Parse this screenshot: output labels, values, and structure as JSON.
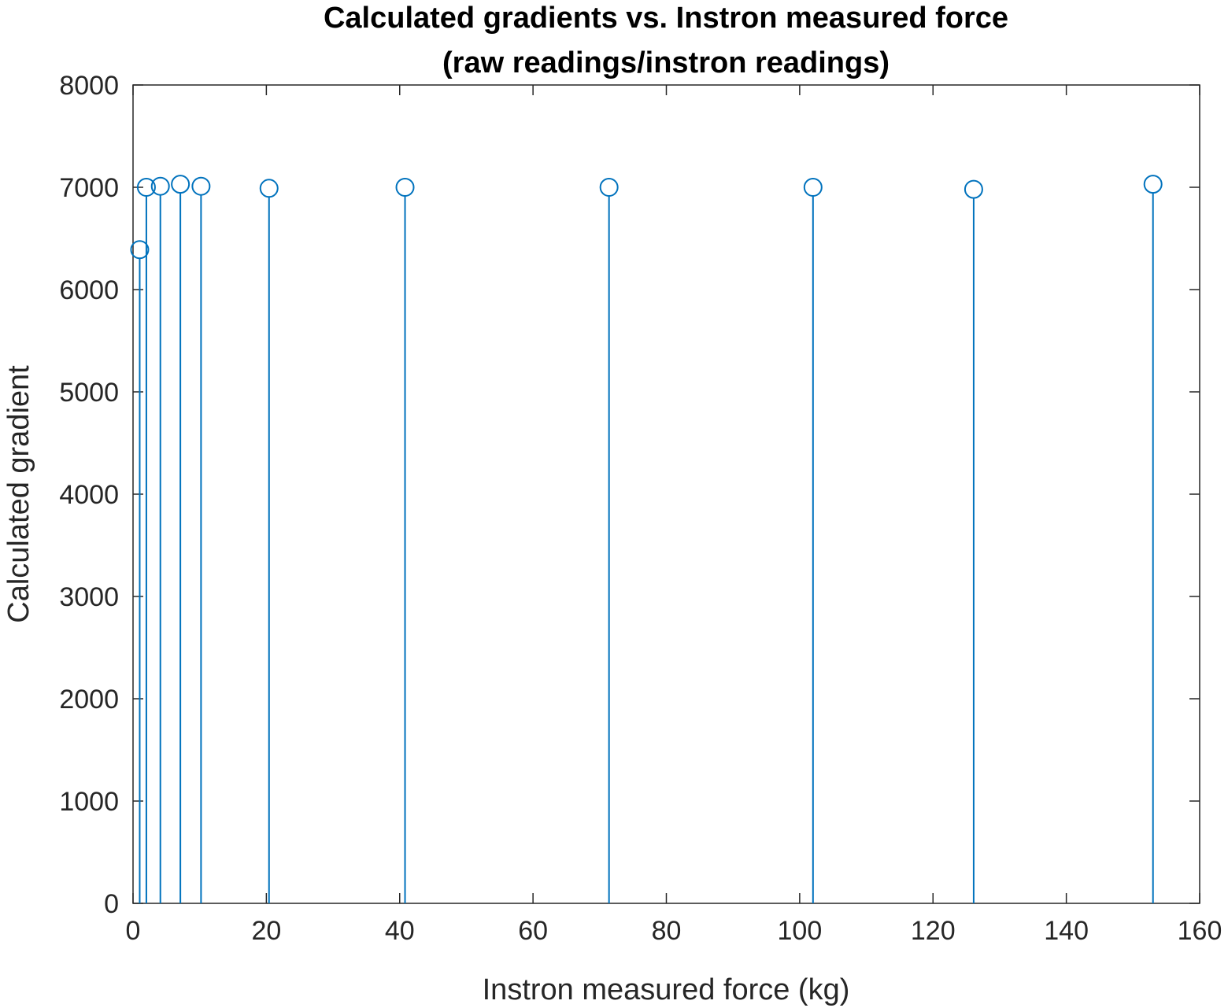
{
  "chart_data": {
    "type": "stem",
    "title": "Calculated gradients vs. Instron measured force",
    "subtitle": "(raw readings/instron readings)",
    "xlabel": "Instron measured force (kg)",
    "ylabel": "Calculated gradient",
    "xlim": [
      0,
      160
    ],
    "ylim": [
      0,
      8000
    ],
    "xticks": [
      0,
      20,
      40,
      60,
      80,
      100,
      120,
      140,
      160
    ],
    "yticks": [
      0,
      1000,
      2000,
      3000,
      4000,
      5000,
      6000,
      7000,
      8000
    ],
    "grid": false,
    "series": [
      {
        "name": "gradient",
        "color": "#0072BD",
        "x": [
          1.0,
          2.0,
          4.1,
          7.1,
          10.2,
          20.4,
          40.8,
          71.4,
          102.0,
          126.1,
          153.0
        ],
        "y": [
          6390,
          7000,
          7010,
          7030,
          7010,
          6990,
          7000,
          7000,
          7000,
          6980,
          7030
        ]
      }
    ]
  }
}
